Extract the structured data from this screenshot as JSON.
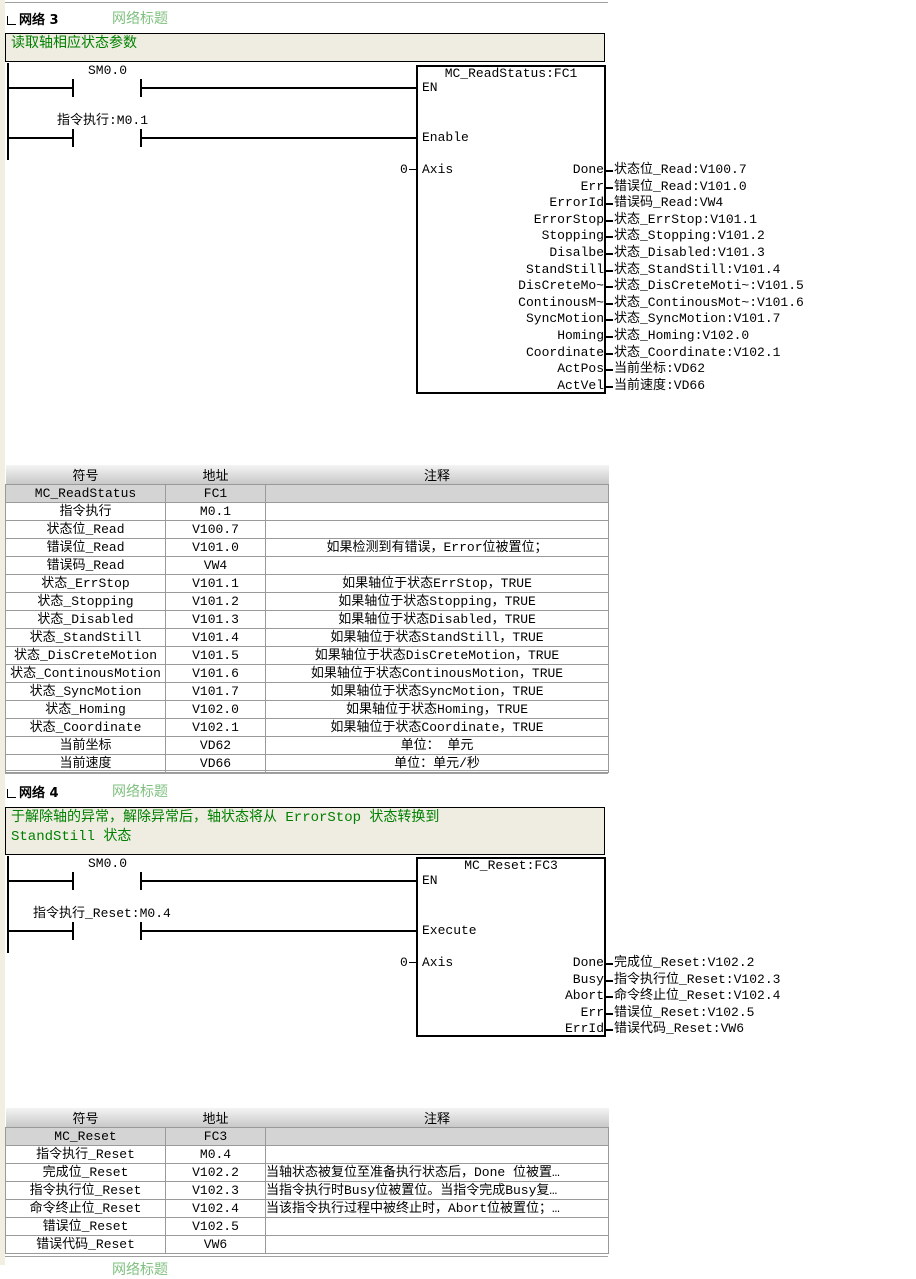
{
  "networks": [
    {
      "label": "网络 3",
      "title_placeholder": "网络标题",
      "comment": "读取轴相应状态参数",
      "contacts": [
        {
          "label": "SM0.0"
        },
        {
          "label": "指令执行:M0.1"
        }
      ],
      "block": {
        "title": "MC_ReadStatus:FC1",
        "inputs": [
          "EN",
          "Enable",
          "Axis"
        ],
        "axis_value": "0",
        "outputs": [
          {
            "pin": "Done",
            "var": "状态位_Read:V100.7"
          },
          {
            "pin": "Err",
            "var": "错误位_Read:V101.0"
          },
          {
            "pin": "ErrorId",
            "var": "错误码_Read:VW4"
          },
          {
            "pin": "ErrorStop",
            "var": "状态_ErrStop:V101.1"
          },
          {
            "pin": "Stopping",
            "var": "状态_Stopping:V101.2"
          },
          {
            "pin": "Disalbe",
            "var": "状态_Disabled:V101.3"
          },
          {
            "pin": "StandStill",
            "var": "状态_StandStill:V101.4"
          },
          {
            "pin": "DisCreteMo~",
            "var": "状态_DisCreteMoti~:V101.5"
          },
          {
            "pin": "ContinousM~",
            "var": "状态_ContinousMot~:V101.6"
          },
          {
            "pin": "SyncMotion",
            "var": "状态_SyncMotion:V101.7"
          },
          {
            "pin": "Homing",
            "var": "状态_Homing:V102.0"
          },
          {
            "pin": "Coordinate",
            "var": "状态_Coordinate:V102.1"
          },
          {
            "pin": "ActPos",
            "var": "当前坐标:VD62"
          },
          {
            "pin": "ActVel",
            "var": "当前速度:VD66"
          }
        ]
      },
      "table": {
        "headers": [
          "符号",
          "地址",
          "注释"
        ],
        "rows": [
          [
            "MC_ReadStatus",
            "FC1",
            ""
          ],
          [
            "指令执行",
            "M0.1",
            ""
          ],
          [
            "状态位_Read",
            "V100.7",
            ""
          ],
          [
            "错误位_Read",
            "V101.0",
            "如果检测到有错误，Error位被置位；"
          ],
          [
            "错误码_Read",
            "VW4",
            ""
          ],
          [
            "状态_ErrStop",
            "V101.1",
            "如果轴位于状态ErrStop，TRUE"
          ],
          [
            "状态_Stopping",
            "V101.2",
            "如果轴位于状态Stopping，TRUE"
          ],
          [
            "状态_Disabled",
            "V101.3",
            "如果轴位于状态Disabled，TRUE"
          ],
          [
            "状态_StandStill",
            "V101.4",
            "如果轴位于状态StandStill，TRUE"
          ],
          [
            "状态_DisCreteMotion",
            "V101.5",
            "如果轴位于状态DisCreteMotion，TRUE"
          ],
          [
            "状态_ContinousMotion",
            "V101.6",
            "如果轴位于状态ContinousMotion，TRUE"
          ],
          [
            "状态_SyncMotion",
            "V101.7",
            "如果轴位于状态SyncMotion，TRUE"
          ],
          [
            "状态_Homing",
            "V102.0",
            "如果轴位于状态Homing，TRUE"
          ],
          [
            "状态_Coordinate",
            "V102.1",
            "如果轴位于状态Coordinate，TRUE"
          ],
          [
            "当前坐标",
            "VD62",
            "单位： 单元"
          ],
          [
            "当前速度",
            "VD66",
            "单位：单元/秒"
          ]
        ]
      }
    },
    {
      "label": "网络 4",
      "title_placeholder": "网络标题",
      "comment": "于解除轴的异常，解除异常后，轴状态将从 ErrorStop 状态转换到\nStandStill 状态",
      "contacts": [
        {
          "label": "SM0.0"
        },
        {
          "label": "指令执行_Reset:M0.4"
        }
      ],
      "block": {
        "title": "MC_Reset:FC3",
        "inputs": [
          "EN",
          "Execute",
          "Axis"
        ],
        "axis_value": "0",
        "outputs": [
          {
            "pin": "Done",
            "var": "完成位_Reset:V102.2"
          },
          {
            "pin": "Busy",
            "var": "指令执行位_Reset:V102.3"
          },
          {
            "pin": "Abort",
            "var": "命令终止位_Reset:V102.4"
          },
          {
            "pin": "Err",
            "var": "错误位_Reset:V102.5"
          },
          {
            "pin": "ErrId",
            "var": "错误代码_Reset:VW6"
          }
        ]
      },
      "table": {
        "headers": [
          "符号",
          "地址",
          "注释"
        ],
        "rows": [
          [
            "MC_Reset",
            "FC3",
            ""
          ],
          [
            "指令执行_Reset",
            "M0.4",
            ""
          ],
          [
            "完成位_Reset",
            "V102.2",
            "当轴状态被复位至准备执行状态后，Done 位被置…"
          ],
          [
            "指令执行位_Reset",
            "V102.3",
            "当指令执行时Busy位被置位。当指令完成Busy复…"
          ],
          [
            "命令终止位_Reset",
            "V102.4",
            "当该指令执行过程中被终止时，Abort位被置位；…"
          ],
          [
            "错误位_Reset",
            "V102.5",
            ""
          ],
          [
            "错误代码_Reset",
            "VW6",
            ""
          ]
        ]
      }
    }
  ],
  "next_network_title": "网络标题",
  "colors": {
    "comment_bg": "#efede1",
    "comment_text": "#008000",
    "title_placeholder": "#7fc07f",
    "table_header": "#c8c8c8"
  }
}
